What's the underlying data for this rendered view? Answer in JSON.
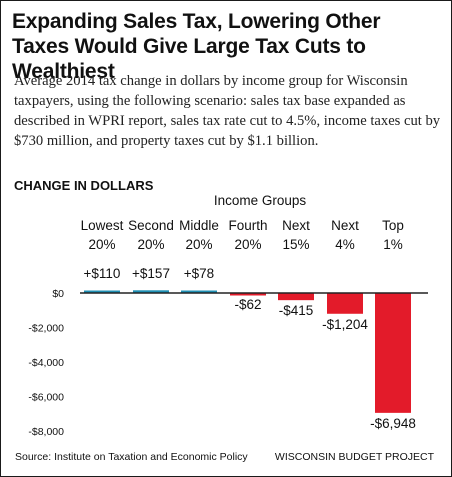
{
  "title": "Expanding Sales Tax, Lowering Other Taxes Would Give Large Tax Cuts to Wealthiest",
  "subtitle": "Average 2014 tax change in dollars by income group for Wisconsin taxpayers, using the following scenario: sales tax base expanded as described in WPRI report, sales tax rate cut to 4.5%, income taxes cut by $730 million, and property taxes cut by $1.1 billion.",
  "section_label": "CHANGE IN DOLLARS",
  "source": "Source: Institute on Taxation and Economic Policy",
  "credit": "WISCONSIN BUDGET PROJECT",
  "chart_data": {
    "type": "bar",
    "group_title": "Income Groups",
    "categories": [
      [
        "Lowest",
        "20%"
      ],
      [
        "Second",
        "20%"
      ],
      [
        "Middle",
        "20%"
      ],
      [
        "Fourth",
        "20%"
      ],
      [
        "Next",
        "15%"
      ],
      [
        "Next",
        "4%"
      ],
      [
        "Top",
        "1%"
      ]
    ],
    "values": [
      110,
      157,
      78,
      -62,
      -415,
      -1204,
      -6948
    ],
    "value_labels": [
      "+$110",
      "+$157",
      "+$78",
      "-$62",
      "-$415",
      "-$1,204",
      "-$6,948"
    ],
    "ylim": [
      -8000,
      0
    ],
    "yticks": [
      0,
      -2000,
      -4000,
      -6000,
      -8000
    ],
    "ytick_labels": [
      "$0",
      "-$2,000",
      "-$4,000",
      "-$6,000",
      "-$8,000"
    ],
    "colors": {
      "positive": "#1f8fb3",
      "negative": "#e31b2a",
      "axis": "#222222"
    },
    "grid": false,
    "legend": "none"
  }
}
